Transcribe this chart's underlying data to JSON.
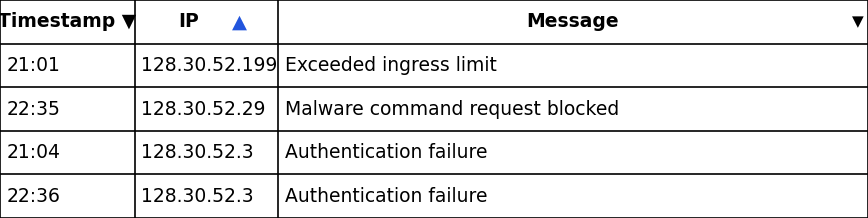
{
  "headers": [
    "Timestamp",
    "IP",
    "Message"
  ],
  "header_arrow_texts": [
    "▼",
    "▲",
    "▼"
  ],
  "header_arrow_colors": [
    "#000000",
    "#2255DD",
    "#000000"
  ],
  "header_arrow_positions": [
    "right_of_text",
    "right_of_text",
    "far_right"
  ],
  "rows": [
    [
      "21:01",
      "128.30.52.199",
      "Exceeded ingress limit"
    ],
    [
      "22:35",
      "128.30.52.29",
      "Malware command request blocked"
    ],
    [
      "21:04",
      "128.30.52.3",
      "Authentication failure"
    ],
    [
      "22:36",
      "128.30.52.3",
      "Authentication failure"
    ]
  ],
  "col_boundaries": [
    0.0,
    0.155,
    0.32,
    1.0
  ],
  "header_bg": "#ffffff",
  "row_bg": "#ffffff",
  "border_color": "#000000",
  "text_color": "#000000",
  "header_font_size": 13.5,
  "cell_font_size": 13.5,
  "arrow_font_size": 11,
  "fig_width": 8.68,
  "fig_height": 2.18,
  "dpi": 100
}
